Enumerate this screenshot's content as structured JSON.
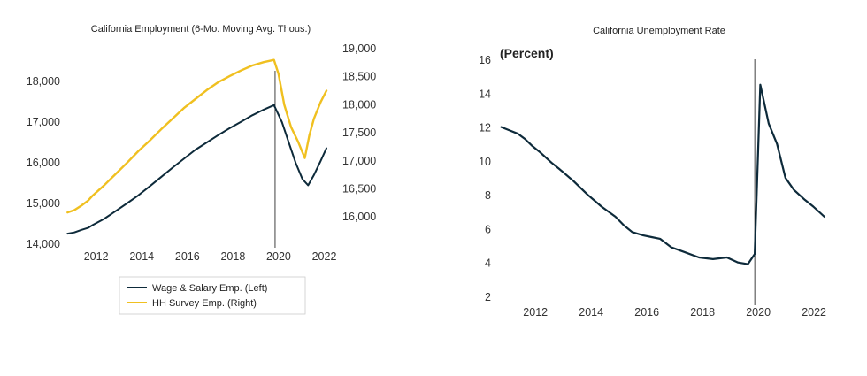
{
  "chart_data": [
    {
      "type": "line",
      "title": "California Employment (6-Mo. Moving Avg. Thous.)",
      "xlabel": "",
      "ylabel": "",
      "xlim": [
        2010.85,
        2022.6
      ],
      "x_ticks": [
        2012,
        2014,
        2016,
        2018,
        2020,
        2022
      ],
      "ylim_left": [
        14000,
        18700
      ],
      "yticks_left": [
        14000,
        15000,
        16000,
        17000,
        18000
      ],
      "ytick_labels_left": [
        "14,000",
        "15,000",
        "16,000",
        "17,000",
        "18,000"
      ],
      "ylim_right": [
        15750,
        19000
      ],
      "yticks_right": [
        16000,
        16500,
        17000,
        17500,
        18000,
        18500,
        19000
      ],
      "ytick_labels_right": [
        "16,000",
        "16,500",
        "17,000",
        "17,500",
        "18,000",
        "18,500",
        "19,000"
      ],
      "vertical_line_x": 2020.0,
      "grid": false,
      "legend_position": "bottom",
      "series": [
        {
          "name": "Wage & Salary Emp. (Left)",
          "axis": "left",
          "color": "#0d2a3a",
          "x": [
            2010.9,
            2011.2,
            2011.5,
            2011.8,
            2012.0,
            2012.5,
            2013.0,
            2013.5,
            2014.0,
            2014.5,
            2015.0,
            2015.5,
            2016.0,
            2016.5,
            2017.0,
            2017.5,
            2018.0,
            2018.5,
            2019.0,
            2019.5,
            2019.95,
            2020.3,
            2020.6,
            2020.9,
            2021.2,
            2021.45,
            2021.7,
            2022.0,
            2022.25
          ],
          "values": [
            14260,
            14290,
            14350,
            14400,
            14470,
            14620,
            14810,
            15000,
            15200,
            15420,
            15650,
            15880,
            16100,
            16320,
            16500,
            16680,
            16850,
            17010,
            17170,
            17310,
            17420,
            17000,
            16500,
            16000,
            15600,
            15450,
            15700,
            16050,
            16360
          ]
        },
        {
          "name": "HH Survey Emp. (Right)",
          "axis": "right",
          "color": "#f0c020",
          "x": [
            2010.9,
            2011.2,
            2011.5,
            2011.8,
            2012.0,
            2012.5,
            2013.0,
            2013.5,
            2014.0,
            2014.5,
            2015.0,
            2015.5,
            2016.0,
            2016.5,
            2017.0,
            2017.5,
            2018.0,
            2018.5,
            2019.0,
            2019.5,
            2019.95,
            2020.15,
            2020.4,
            2020.7,
            2021.0,
            2021.3,
            2021.5,
            2021.7,
            2022.0,
            2022.25
          ],
          "values": [
            16080,
            16120,
            16200,
            16290,
            16380,
            16560,
            16760,
            16960,
            17170,
            17360,
            17560,
            17750,
            17940,
            18100,
            18260,
            18400,
            18510,
            18610,
            18700,
            18760,
            18800,
            18550,
            18000,
            17600,
            17350,
            17050,
            17450,
            17750,
            18050,
            18250
          ]
        }
      ]
    },
    {
      "type": "line",
      "title": "California Unemployment Rate",
      "unit_label": "(Percent)",
      "xlabel": "",
      "ylabel": "",
      "xlim": [
        2010.85,
        2022.6
      ],
      "x_ticks": [
        2012,
        2014,
        2016,
        2018,
        2020,
        2022
      ],
      "ylim": [
        2,
        16
      ],
      "yticks": [
        2,
        4,
        6,
        8,
        10,
        12,
        14,
        16
      ],
      "vertical_line_x": 2020.0,
      "grid": false,
      "series": [
        {
          "name": "",
          "color": "#0d2a3a",
          "x": [
            2010.9,
            2011.2,
            2011.5,
            2011.75,
            2012.0,
            2012.3,
            2012.7,
            2013.0,
            2013.5,
            2014.0,
            2014.5,
            2015.0,
            2015.3,
            2015.6,
            2016.0,
            2016.3,
            2016.6,
            2017.0,
            2017.5,
            2018.0,
            2018.5,
            2019.0,
            2019.4,
            2019.75,
            2020.0,
            2020.2,
            2020.5,
            2020.8,
            2021.1,
            2021.4,
            2021.8,
            2022.1,
            2022.5
          ],
          "values": [
            12.0,
            11.8,
            11.6,
            11.3,
            10.9,
            10.5,
            9.9,
            9.5,
            8.8,
            8.0,
            7.3,
            6.7,
            6.2,
            5.8,
            5.6,
            5.5,
            5.4,
            4.9,
            4.6,
            4.3,
            4.2,
            4.3,
            4.0,
            3.9,
            4.5,
            14.5,
            12.2,
            11.0,
            9.0,
            8.3,
            7.7,
            7.3,
            6.7
          ]
        }
      ]
    }
  ]
}
